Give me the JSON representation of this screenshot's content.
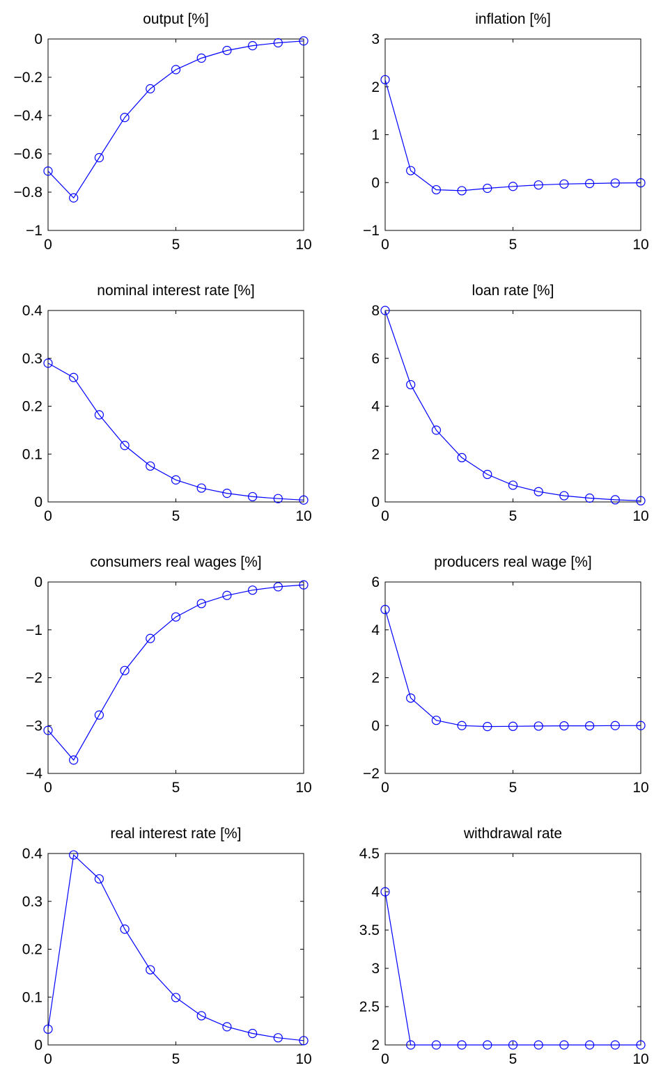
{
  "chart_data": [
    {
      "type": "line",
      "title": "output [%]",
      "x": [
        0,
        1,
        2,
        3,
        4,
        5,
        6,
        7,
        8,
        9,
        10
      ],
      "series": [
        {
          "values": [
            -0.69,
            -0.83,
            -0.62,
            -0.41,
            -0.26,
            -0.16,
            -0.1,
            -0.06,
            -0.035,
            -0.02,
            -0.01
          ]
        }
      ],
      "xlim": [
        0,
        10
      ],
      "ylim": [
        -1,
        0
      ],
      "xticks": [
        "0",
        "5",
        "10"
      ],
      "xtick_values": [
        0,
        5,
        10
      ],
      "yticks": [
        "−1",
        "−0.8",
        "−0.6",
        "−0.4",
        "−0.2",
        "0"
      ],
      "ytick_values": [
        -1,
        -0.8,
        -0.6,
        -0.4,
        -0.2,
        0
      ],
      "line_color": "#0000ff",
      "marker": "circle",
      "grid": false
    },
    {
      "type": "line",
      "title": "inflation [%]",
      "x": [
        0,
        1,
        2,
        3,
        4,
        5,
        6,
        7,
        8,
        9,
        10
      ],
      "series": [
        {
          "values": [
            2.15,
            0.25,
            -0.15,
            -0.17,
            -0.12,
            -0.08,
            -0.05,
            -0.03,
            -0.02,
            -0.01,
            -0.005
          ]
        }
      ],
      "xlim": [
        0,
        10
      ],
      "ylim": [
        -1,
        3
      ],
      "xticks": [
        "0",
        "5",
        "10"
      ],
      "xtick_values": [
        0,
        5,
        10
      ],
      "yticks": [
        "−1",
        "0",
        "1",
        "2",
        "3"
      ],
      "ytick_values": [
        -1,
        0,
        1,
        2,
        3
      ],
      "line_color": "#0000ff",
      "marker": "circle",
      "grid": false
    },
    {
      "type": "line",
      "title": "nominal interest rate [%]",
      "x": [
        0,
        1,
        2,
        3,
        4,
        5,
        6,
        7,
        8,
        9,
        10
      ],
      "series": [
        {
          "values": [
            0.29,
            0.26,
            0.182,
            0.118,
            0.075,
            0.046,
            0.029,
            0.018,
            0.011,
            0.007,
            0.004
          ]
        }
      ],
      "xlim": [
        0,
        10
      ],
      "ylim": [
        0,
        0.4
      ],
      "xticks": [
        "0",
        "5",
        "10"
      ],
      "xtick_values": [
        0,
        5,
        10
      ],
      "yticks": [
        "0",
        "0.1",
        "0.2",
        "0.3",
        "0.4"
      ],
      "ytick_values": [
        0,
        0.1,
        0.2,
        0.3,
        0.4
      ],
      "line_color": "#0000ff",
      "marker": "circle",
      "grid": false
    },
    {
      "type": "line",
      "title": "loan rate [%]",
      "x": [
        0,
        1,
        2,
        3,
        4,
        5,
        6,
        7,
        8,
        9,
        10
      ],
      "series": [
        {
          "values": [
            8.0,
            4.9,
            3.0,
            1.85,
            1.15,
            0.7,
            0.43,
            0.26,
            0.16,
            0.09,
            0.05
          ]
        }
      ],
      "xlim": [
        0,
        10
      ],
      "ylim": [
        0,
        8
      ],
      "xticks": [
        "0",
        "5",
        "10"
      ],
      "xtick_values": [
        0,
        5,
        10
      ],
      "yticks": [
        "0",
        "2",
        "4",
        "6",
        "8"
      ],
      "ytick_values": [
        0,
        2,
        4,
        6,
        8
      ],
      "line_color": "#0000ff",
      "marker": "circle",
      "grid": false
    },
    {
      "type": "line",
      "title": "consumers real wages [%]",
      "x": [
        0,
        1,
        2,
        3,
        4,
        5,
        6,
        7,
        8,
        9,
        10
      ],
      "series": [
        {
          "values": [
            -3.1,
            -3.72,
            -2.78,
            -1.85,
            -1.18,
            -0.73,
            -0.45,
            -0.28,
            -0.17,
            -0.1,
            -0.06
          ]
        }
      ],
      "xlim": [
        0,
        10
      ],
      "ylim": [
        -4,
        0
      ],
      "xticks": [
        "0",
        "5",
        "10"
      ],
      "xtick_values": [
        0,
        5,
        10
      ],
      "yticks": [
        "−4",
        "−3",
        "−2",
        "−1",
        "0"
      ],
      "ytick_values": [
        -4,
        -3,
        -2,
        -1,
        0
      ],
      "line_color": "#0000ff",
      "marker": "circle",
      "grid": false
    },
    {
      "type": "line",
      "title": "producers real wage [%]",
      "x": [
        0,
        1,
        2,
        3,
        4,
        5,
        6,
        7,
        8,
        9,
        10
      ],
      "series": [
        {
          "values": [
            4.85,
            1.15,
            0.22,
            0.0,
            -0.04,
            -0.03,
            -0.02,
            -0.01,
            -0.01,
            0.0,
            0.0
          ]
        }
      ],
      "xlim": [
        0,
        10
      ],
      "ylim": [
        -2,
        6
      ],
      "xticks": [
        "0",
        "5",
        "10"
      ],
      "xtick_values": [
        0,
        5,
        10
      ],
      "yticks": [
        "−2",
        "0",
        "2",
        "4",
        "6"
      ],
      "ytick_values": [
        -2,
        0,
        2,
        4,
        6
      ],
      "line_color": "#0000ff",
      "marker": "circle",
      "grid": false
    },
    {
      "type": "line",
      "title": "real interest rate [%]",
      "x": [
        0,
        1,
        2,
        3,
        4,
        5,
        6,
        7,
        8,
        9,
        10
      ],
      "series": [
        {
          "values": [
            0.033,
            0.397,
            0.347,
            0.242,
            0.157,
            0.099,
            0.061,
            0.038,
            0.024,
            0.015,
            0.009
          ]
        }
      ],
      "xlim": [
        0,
        10
      ],
      "ylim": [
        0,
        0.4
      ],
      "xticks": [
        "0",
        "5",
        "10"
      ],
      "xtick_values": [
        0,
        5,
        10
      ],
      "yticks": [
        "0",
        "0.1",
        "0.2",
        "0.3",
        "0.4"
      ],
      "ytick_values": [
        0,
        0.1,
        0.2,
        0.3,
        0.4
      ],
      "line_color": "#0000ff",
      "marker": "circle",
      "grid": false
    },
    {
      "type": "line",
      "title": "withdrawal rate",
      "x": [
        0,
        1,
        2,
        3,
        4,
        5,
        6,
        7,
        8,
        9,
        10
      ],
      "series": [
        {
          "values": [
            4.0,
            2.0,
            2.0,
            2.0,
            2.0,
            2.0,
            2.0,
            2.0,
            2.0,
            2.0,
            2.0
          ]
        }
      ],
      "xlim": [
        0,
        10
      ],
      "ylim": [
        2,
        4.5
      ],
      "xticks": [
        "0",
        "5",
        "10"
      ],
      "xtick_values": [
        0,
        5,
        10
      ],
      "yticks": [
        "2",
        "2.5",
        "3",
        "3.5",
        "4",
        "4.5"
      ],
      "ytick_values": [
        2,
        2.5,
        3,
        3.5,
        4,
        4.5
      ],
      "line_color": "#0000ff",
      "marker": "circle",
      "grid": false
    }
  ]
}
